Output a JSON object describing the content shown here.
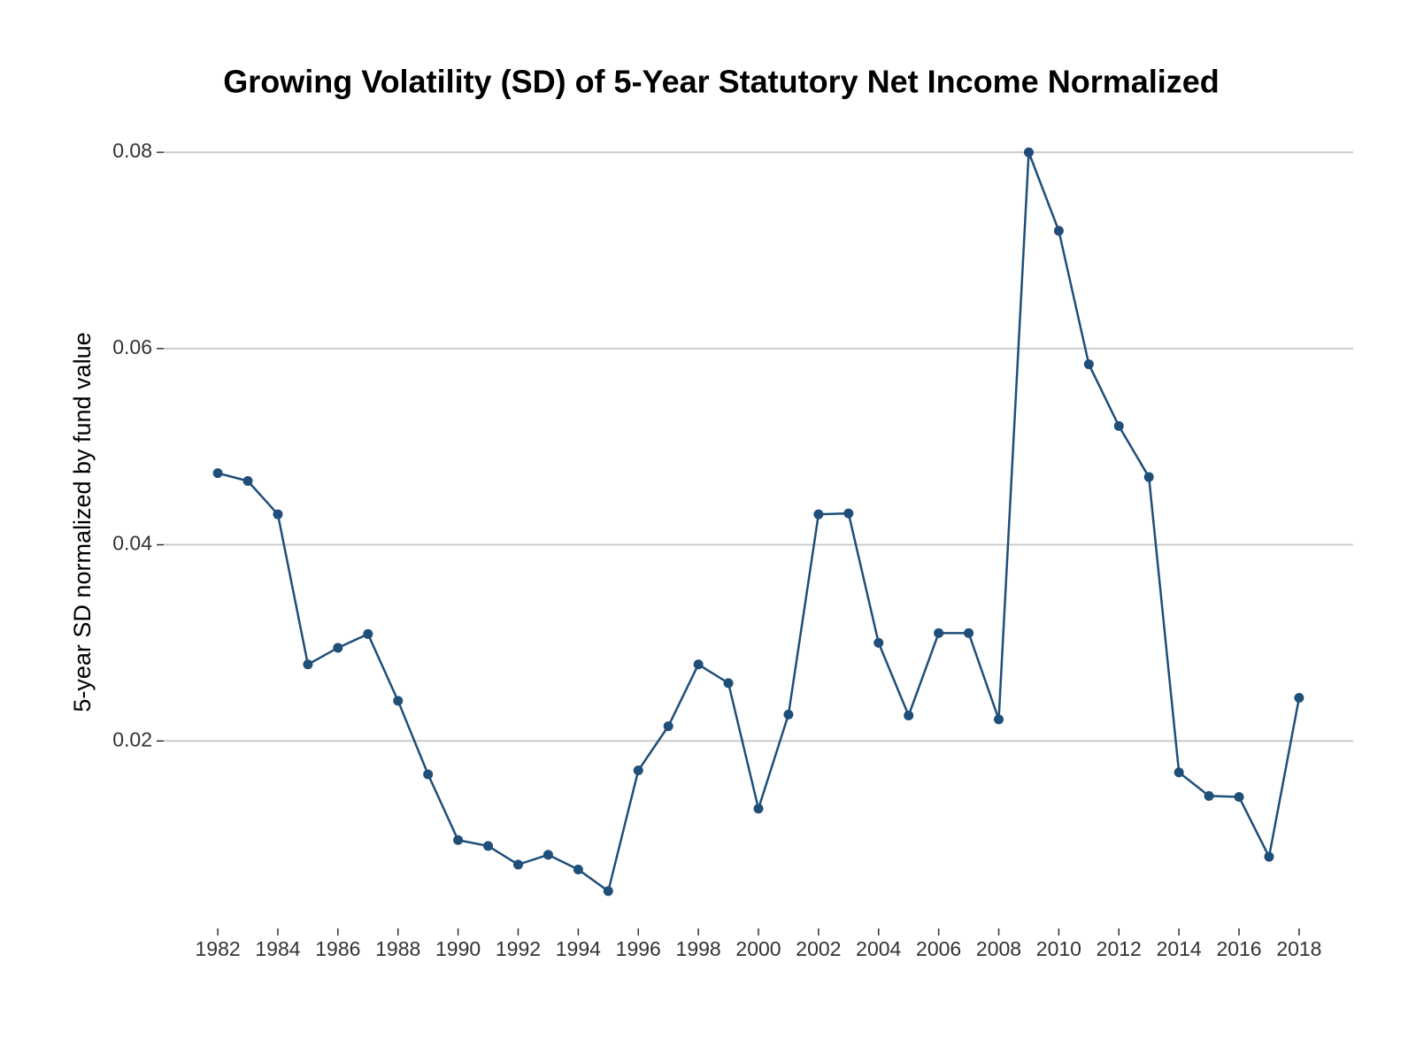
{
  "chart_data": {
    "type": "line",
    "title": "Growing Volatility (SD) of 5-Year Statutory Net Income Normalized",
    "y_label": "5-year SD normalized by fund value",
    "x": [
      1982,
      1983,
      1984,
      1985,
      1986,
      1987,
      1988,
      1989,
      1990,
      1991,
      1992,
      1993,
      1994,
      1995,
      1996,
      1997,
      1998,
      1999,
      2000,
      2001,
      2002,
      2003,
      2004,
      2005,
      2006,
      2007,
      2008,
      2009,
      2010,
      2011,
      2012,
      2013,
      2014,
      2015,
      2016,
      2017,
      2018
    ],
    "series": [
      {
        "color": "#1f4e79",
        "values": [
          0.0473,
          0.0465,
          0.0431,
          0.0278,
          0.0295,
          0.0309,
          0.0241,
          0.0166,
          0.0099,
          0.0093,
          0.0074,
          0.0084,
          0.0069,
          0.0047,
          0.017,
          0.0215,
          0.0278,
          0.0259,
          0.0131,
          0.0227,
          0.0431,
          0.0432,
          0.03,
          0.0226,
          0.031,
          0.031,
          0.0222,
          0.08,
          0.072,
          0.0584,
          0.0521,
          0.0469,
          0.0168,
          0.0144,
          0.0143,
          0.0082,
          0.0244
        ]
      }
    ],
    "xlim": [
      1980.2,
      2019.8
    ],
    "xticks": [
      1982,
      1984,
      1986,
      1988,
      1990,
      1992,
      1994,
      1996,
      1998,
      2000,
      2002,
      2004,
      2006,
      2008,
      2010,
      2012,
      2014,
      2016,
      2018
    ],
    "ylim": [
      0.0009,
      0.0838
    ],
    "yticks": [
      0.02,
      0.04,
      0.06,
      0.08
    ],
    "grid": true
  }
}
